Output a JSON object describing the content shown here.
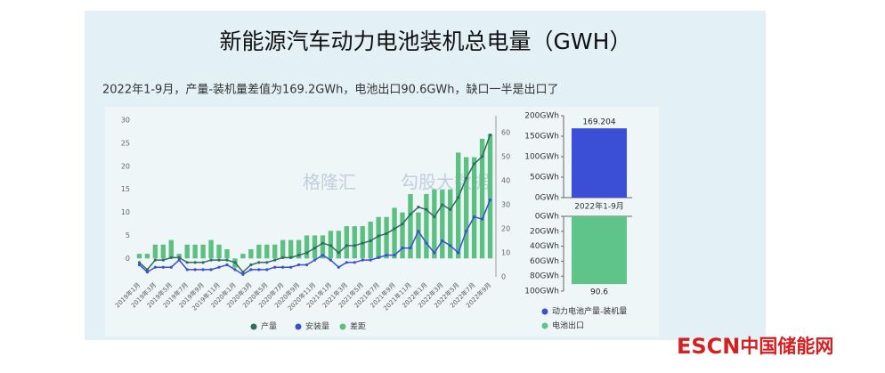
{
  "header": {
    "title": "新能源汽车动力电池装机总电量（GWH）",
    "subtitle": "2022年1-9月，产量-装机量差值为169.2GWh，电池出口90.6GWh，缺口一半是出口了"
  },
  "watermark": [
    "格隆汇",
    "勾股大数据"
  ],
  "logo": {
    "brand": "ESCN",
    "name": "中国储能网"
  },
  "chart_data": [
    {
      "type": "combo",
      "categories": [
        "2019年1月",
        null,
        "2019年3月",
        null,
        "2019年5月",
        null,
        "2019年7月",
        null,
        "2019年9月",
        null,
        "2019年11月",
        null,
        "2020年1月",
        null,
        "2020年3月",
        null,
        "2020年5月",
        null,
        "2020年7月",
        null,
        "2020年9月",
        null,
        "2020年11月",
        null,
        "2021年1月",
        null,
        "2021年3月",
        null,
        "2021年5月",
        null,
        "2021年7月",
        null,
        "2021年9月",
        null,
        "2021年11月",
        null,
        "2022年1月",
        null,
        "2022年3月",
        null,
        "2022年5月",
        null,
        "2022年7月",
        null,
        "2022年9月"
      ],
      "ylim": [
        -4,
        31
      ],
      "yticks": [
        0,
        5,
        10,
        15,
        20,
        25,
        30
      ],
      "y2lim": [
        0,
        67
      ],
      "y2ticks": [
        0,
        10,
        20,
        30,
        40,
        50,
        60
      ],
      "series": [
        {
          "name": "产量",
          "type": "line",
          "axis": "y2",
          "color": "#2f6e5e",
          "values": [
            6,
            3,
            7,
            7,
            8,
            8,
            6,
            6,
            6,
            7,
            7,
            7,
            6,
            2,
            5,
            6,
            6,
            7,
            8,
            8,
            9,
            10,
            12,
            14,
            13,
            10,
            13,
            13,
            14,
            15,
            17,
            18,
            20,
            22,
            26,
            29,
            28,
            25,
            30,
            28,
            33,
            41,
            47,
            50,
            59
          ]
        },
        {
          "name": "安装量",
          "type": "line",
          "axis": "y2",
          "color": "#3b4fd1",
          "values": [
            5,
            2,
            4,
            4,
            4,
            7,
            3,
            3,
            3,
            3,
            4,
            5,
            3,
            1,
            3,
            3,
            3,
            4,
            4,
            4,
            5,
            5,
            7,
            9,
            7,
            4,
            6,
            6,
            7,
            7,
            8,
            9,
            9,
            12,
            12,
            19,
            14,
            10,
            15,
            13,
            10,
            19,
            25,
            24,
            32
          ]
        },
        {
          "name": "差距",
          "type": "bar",
          "color": "#5dbf82",
          "values": [
            1,
            1,
            3,
            3,
            4,
            1,
            3,
            3,
            3,
            4,
            3,
            2,
            -2,
            1,
            2,
            3,
            3,
            3,
            4,
            4,
            4,
            5,
            5,
            5,
            6,
            6,
            7,
            7,
            7,
            8,
            9,
            9,
            11,
            10,
            14,
            10,
            14,
            15,
            15,
            15,
            23,
            22,
            22,
            26,
            27
          ]
        }
      ]
    },
    {
      "type": "bar",
      "categories": [
        "2022年1-9月"
      ],
      "ylim": [
        0,
        200
      ],
      "yticks": [
        {
          "value": 0,
          "label": "0GWh"
        },
        {
          "value": 50,
          "label": "50GWh"
        },
        {
          "value": 100,
          "label": "100GWh"
        },
        {
          "value": 150,
          "label": "150GWh"
        },
        {
          "value": 200,
          "label": "200GWh"
        }
      ],
      "series": [
        {
          "name": "动力电池产量-装机量",
          "color": "#3a4fd6",
          "values": [
            169.204
          ]
        }
      ]
    },
    {
      "type": "bar",
      "inverted": true,
      "ylim": [
        0,
        100
      ],
      "yticks": [
        {
          "value": 0,
          "label": "0GWh"
        },
        {
          "value": 20,
          "label": "20GWh"
        },
        {
          "value": 40,
          "label": "40GWh"
        },
        {
          "value": 60,
          "label": "60GWh"
        },
        {
          "value": 80,
          "label": "80GWh"
        },
        {
          "value": 100,
          "label": "100GWh"
        }
      ],
      "series": [
        {
          "name": "电池出口",
          "color": "#5fc48a",
          "values": [
            90.6
          ]
        }
      ]
    }
  ]
}
